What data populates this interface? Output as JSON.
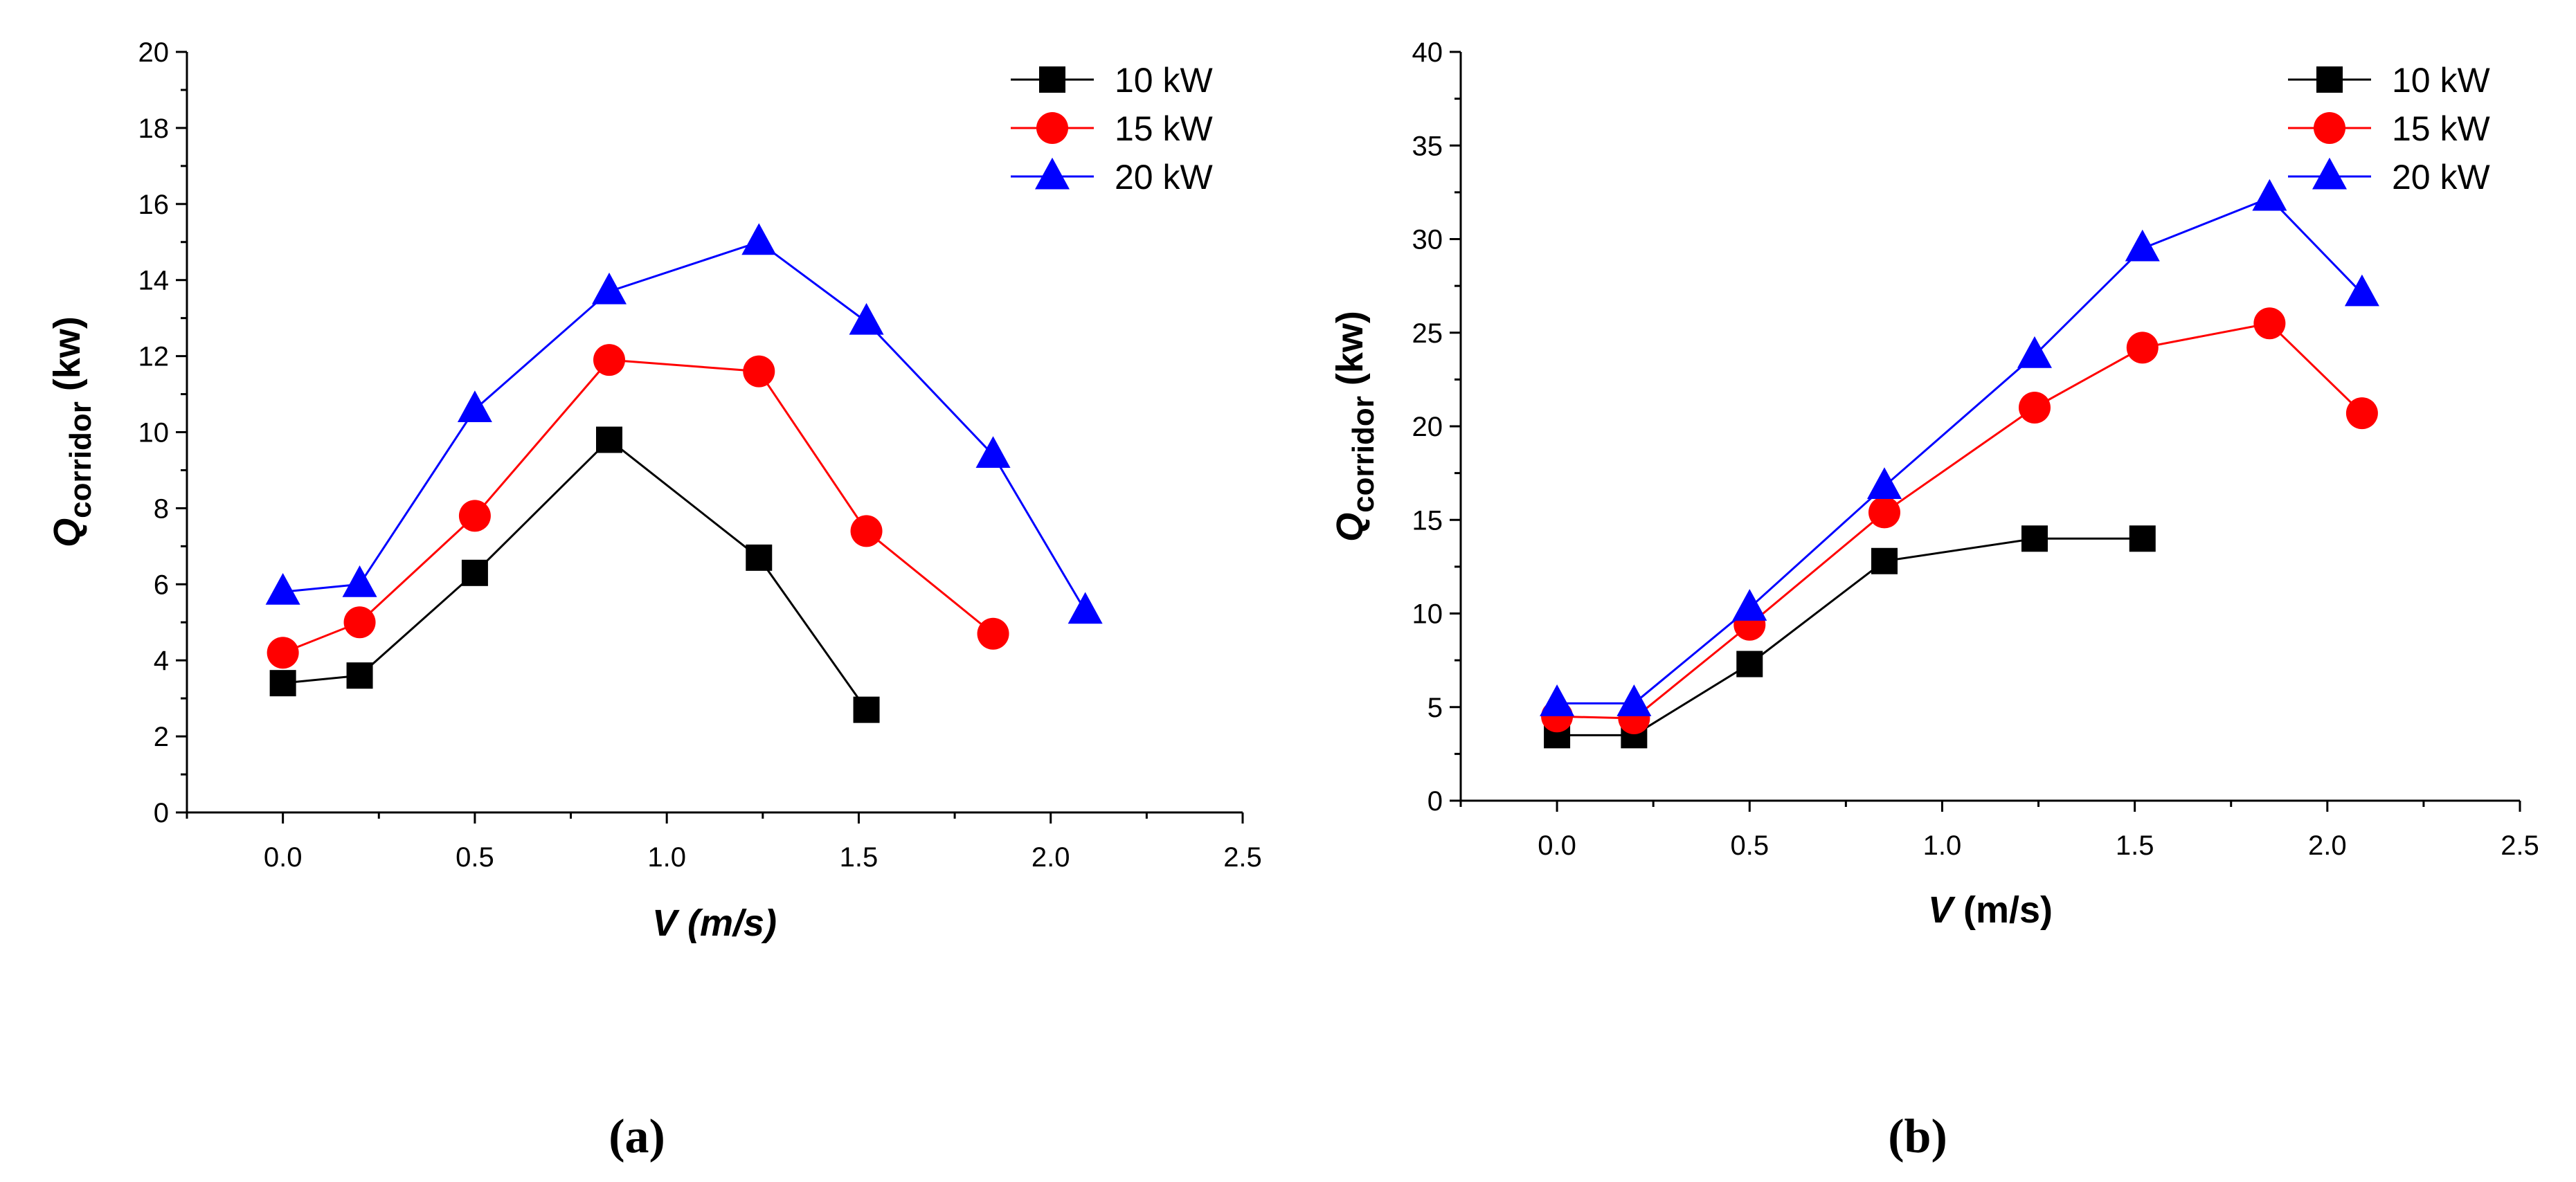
{
  "chart_data": [
    {
      "type": "line",
      "panel_label": "(a)",
      "xlabel_main": "V",
      "xlabel_unit": " (m/s)",
      "ylabel_main": "Q",
      "ylabel_sub": "corridor",
      "ylabel_unit": "  (kw)",
      "xlim": [
        -0.25,
        2.5
      ],
      "ylim": [
        0,
        20
      ],
      "xticks": [
        0.0,
        0.5,
        1.0,
        1.5,
        2.0,
        2.5
      ],
      "xtick_labels": [
        "0.0",
        "0.5",
        "1.0",
        "1.5",
        "2.0",
        "2.5"
      ],
      "yticks": [
        0,
        2,
        4,
        6,
        8,
        10,
        12,
        14,
        16,
        18,
        20
      ],
      "ytick_labels": [
        "0",
        "2",
        "4",
        "6",
        "8",
        "10",
        "12",
        "14",
        "16",
        "18",
        "20"
      ],
      "legend_position": "top-right",
      "series": [
        {
          "name": "10 kW",
          "color": "#000000",
          "marker": "square",
          "x": [
            0.0,
            0.2,
            0.5,
            0.85,
            1.24,
            1.52
          ],
          "y": [
            3.4,
            3.6,
            6.3,
            9.8,
            6.7,
            2.7
          ]
        },
        {
          "name": "15 kW",
          "color": "#ff0000",
          "marker": "circle",
          "x": [
            0.0,
            0.2,
            0.5,
            0.85,
            1.24,
            1.52,
            1.85
          ],
          "y": [
            4.2,
            5.0,
            7.8,
            11.9,
            11.6,
            7.4,
            4.7
          ]
        },
        {
          "name": "20 kW",
          "color": "#0000ff",
          "marker": "triangle",
          "x": [
            0.0,
            0.2,
            0.5,
            0.85,
            1.24,
            1.52,
            1.85,
            2.09
          ],
          "y": [
            5.8,
            6.0,
            10.6,
            13.7,
            15.0,
            12.9,
            9.4,
            5.3
          ]
        }
      ]
    },
    {
      "type": "line",
      "panel_label": "(b)",
      "xlabel_main": "V",
      "xlabel_unit": " (m/s)",
      "ylabel_main": "Q",
      "ylabel_sub": "corridor",
      "ylabel_unit": "  (kw)",
      "xlim": [
        -0.25,
        2.5
      ],
      "ylim": [
        0,
        40
      ],
      "xticks": [
        0.0,
        0.5,
        1.0,
        1.5,
        2.0,
        2.5
      ],
      "xtick_labels": [
        "0.0",
        "0.5",
        "1.0",
        "1.5",
        "2.0",
        "2.5"
      ],
      "yticks": [
        0,
        5,
        10,
        15,
        20,
        25,
        30,
        35,
        40
      ],
      "ytick_labels": [
        "0",
        "5",
        "10",
        "15",
        "20",
        "25",
        "30",
        "35",
        "40"
      ],
      "legend_position": "top-right",
      "series": [
        {
          "name": "10 kW",
          "color": "#000000",
          "marker": "square",
          "x": [
            0.0,
            0.2,
            0.5,
            0.85,
            1.24,
            1.52
          ],
          "y": [
            3.5,
            3.5,
            7.3,
            12.8,
            14.0,
            14.0
          ]
        },
        {
          "name": "15 kW",
          "color": "#ff0000",
          "marker": "circle",
          "x": [
            0.0,
            0.2,
            0.5,
            0.85,
            1.24,
            1.52,
            1.85,
            2.09
          ],
          "y": [
            4.5,
            4.4,
            9.4,
            15.4,
            21.0,
            24.2,
            25.5,
            20.7
          ]
        },
        {
          "name": "20 kW",
          "color": "#0000ff",
          "marker": "triangle",
          "x": [
            0.0,
            0.2,
            0.5,
            0.85,
            1.24,
            1.52,
            1.85,
            2.09
          ],
          "y": [
            5.2,
            5.2,
            10.3,
            16.8,
            23.8,
            29.5,
            32.2,
            27.1
          ]
        }
      ]
    }
  ]
}
